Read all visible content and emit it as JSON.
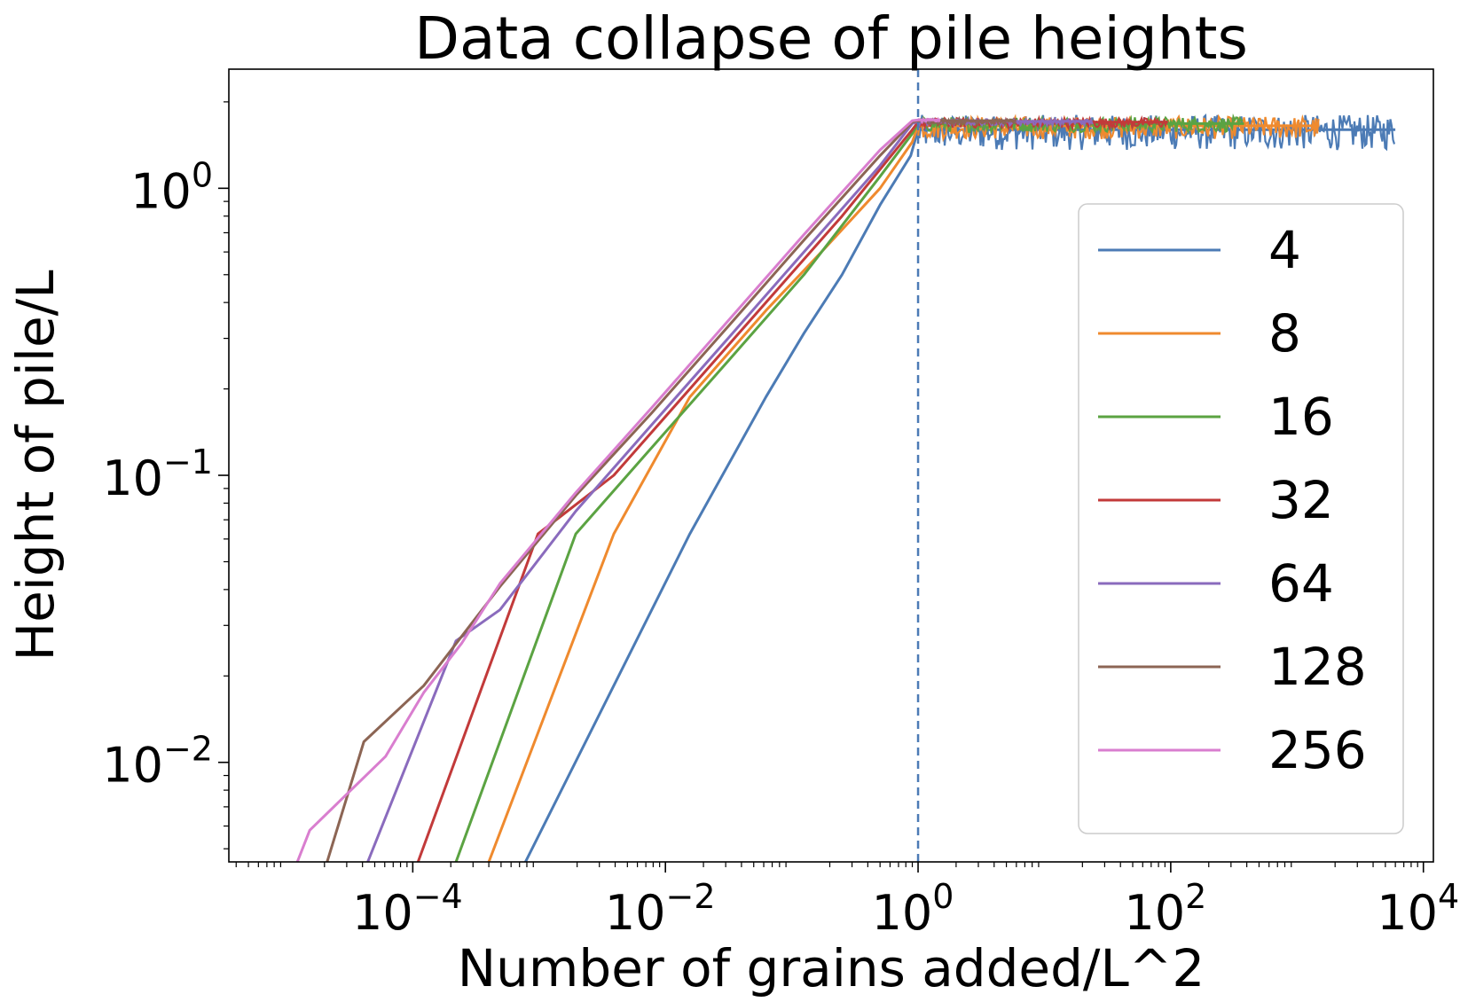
{
  "chart_data": {
    "type": "line",
    "title": "Data collapse of pile heights",
    "xlabel": "Number of grains added/L^2",
    "ylabel": "Height of pile/L",
    "xscale": "log",
    "yscale": "log",
    "xlim": [
      3.5e-06,
      12000
    ],
    "ylim": [
      0.0045,
      2.6
    ],
    "x_ticks": [
      {
        "value": 0.0001,
        "base": "10",
        "exp": "−4"
      },
      {
        "value": 0.01,
        "base": "10",
        "exp": "−2"
      },
      {
        "value": 1,
        "base": "10",
        "exp": "0"
      },
      {
        "value": 100,
        "base": "10",
        "exp": "2"
      },
      {
        "value": 10000,
        "base": "10",
        "exp": "4"
      }
    ],
    "y_ticks": [
      {
        "value": 0.01,
        "base": "10",
        "exp": "−2"
      },
      {
        "value": 0.1,
        "base": "10",
        "exp": "−1"
      },
      {
        "value": 1,
        "base": "10",
        "exp": "0"
      }
    ],
    "crossover_line": {
      "x": 1,
      "color": "#4c7bb5",
      "style": "dashed"
    },
    "legend": {
      "position": "right"
    },
    "series": [
      {
        "name": "4",
        "color": "#4c7bb5",
        "points": [
          [
            0.00078,
            0.0045
          ],
          [
            0.0156,
            0.0625
          ],
          [
            0.0625,
            0.1875
          ],
          [
            0.125,
            0.3125
          ],
          [
            0.25,
            0.5
          ],
          [
            0.5,
            0.875
          ],
          [
            0.875,
            1.3
          ],
          [
            1.0,
            1.6
          ],
          [
            6000,
            1.6
          ]
        ],
        "steady": {
          "x_start": 1.0,
          "x_end": 6000,
          "y_mid": 1.58,
          "noise": 0.14
        }
      },
      {
        "name": "8",
        "color": "#ef8a2e",
        "points": [
          [
            0.0004,
            0.0045
          ],
          [
            0.0039,
            0.0625
          ],
          [
            0.0156,
            0.1875
          ],
          [
            0.0625,
            0.375
          ],
          [
            0.1875,
            0.625
          ],
          [
            0.5,
            1.0
          ],
          [
            0.9,
            1.45
          ],
          [
            1.0,
            1.65
          ],
          [
            1500,
            1.65
          ]
        ],
        "steady": {
          "x_start": 1.0,
          "x_end": 1500,
          "y_mid": 1.63,
          "noise": 0.09
        }
      },
      {
        "name": "16",
        "color": "#5ba342",
        "points": [
          [
            0.00022,
            0.0045
          ],
          [
            0.00195,
            0.0625
          ],
          [
            0.0078,
            0.125
          ],
          [
            0.0313,
            0.25
          ],
          [
            0.125,
            0.5
          ],
          [
            0.5,
            1.1
          ],
          [
            0.9,
            1.55
          ],
          [
            1.0,
            1.68
          ],
          [
            380,
            1.68
          ]
        ],
        "steady": {
          "x_start": 1.0,
          "x_end": 380,
          "y_mid": 1.67,
          "noise": 0.06
        }
      },
      {
        "name": "32",
        "color": "#c23a3a",
        "points": [
          [
            0.00011,
            0.0045
          ],
          [
            0.00098,
            0.0625
          ],
          [
            0.0039,
            0.1
          ],
          [
            0.0156,
            0.2
          ],
          [
            0.0625,
            0.4
          ],
          [
            0.25,
            0.8
          ],
          [
            0.9,
            1.6
          ],
          [
            1.0,
            1.7
          ],
          [
            95,
            1.7
          ]
        ],
        "steady": {
          "x_start": 1.0,
          "x_end": 95,
          "y_mid": 1.69,
          "noise": 0.04
        }
      },
      {
        "name": "64",
        "color": "#8a6bbd",
        "points": [
          [
            4.4e-05,
            0.0045
          ],
          [
            0.00022,
            0.0265
          ],
          [
            0.00049,
            0.034
          ],
          [
            0.00195,
            0.075
          ],
          [
            0.0078,
            0.15
          ],
          [
            0.0313,
            0.3
          ],
          [
            0.125,
            0.6
          ],
          [
            0.5,
            1.2
          ],
          [
            0.9,
            1.68
          ],
          [
            1.0,
            1.71
          ],
          [
            24,
            1.71
          ]
        ],
        "steady": {
          "x_start": 1.0,
          "x_end": 24,
          "y_mid": 1.7,
          "noise": 0.025
        }
      },
      {
        "name": "128",
        "color": "#8c6554",
        "points": [
          [
            2.1e-05,
            0.0045
          ],
          [
            4.1e-05,
            0.0118
          ],
          [
            0.000122,
            0.0185
          ],
          [
            0.00049,
            0.041
          ],
          [
            0.00195,
            0.085
          ],
          [
            0.0078,
            0.165
          ],
          [
            0.0313,
            0.33
          ],
          [
            0.125,
            0.66
          ],
          [
            0.5,
            1.3
          ],
          [
            0.9,
            1.7
          ],
          [
            1.0,
            1.72
          ],
          [
            6,
            1.72
          ]
        ],
        "steady": {
          "x_start": 1.0,
          "x_end": 6,
          "y_mid": 1.71,
          "noise": 0.02
        }
      },
      {
        "name": "256",
        "color": "#d97ecf",
        "points": [
          [
            1.22e-05,
            0.0045
          ],
          [
            1.53e-05,
            0.0058
          ],
          [
            3.05e-05,
            0.0078
          ],
          [
            6.1e-05,
            0.0105
          ],
          [
            0.000122,
            0.0175
          ],
          [
            0.000244,
            0.026
          ],
          [
            0.00049,
            0.042
          ],
          [
            0.00195,
            0.087
          ],
          [
            0.0078,
            0.172
          ],
          [
            0.0313,
            0.345
          ],
          [
            0.125,
            0.69
          ],
          [
            0.5,
            1.36
          ],
          [
            0.9,
            1.72
          ],
          [
            1.0,
            1.73
          ],
          [
            1.5,
            1.73
          ]
        ],
        "steady": {
          "x_start": 1.0,
          "x_end": 1.5,
          "y_mid": 1.72,
          "noise": 0.015
        }
      }
    ]
  }
}
